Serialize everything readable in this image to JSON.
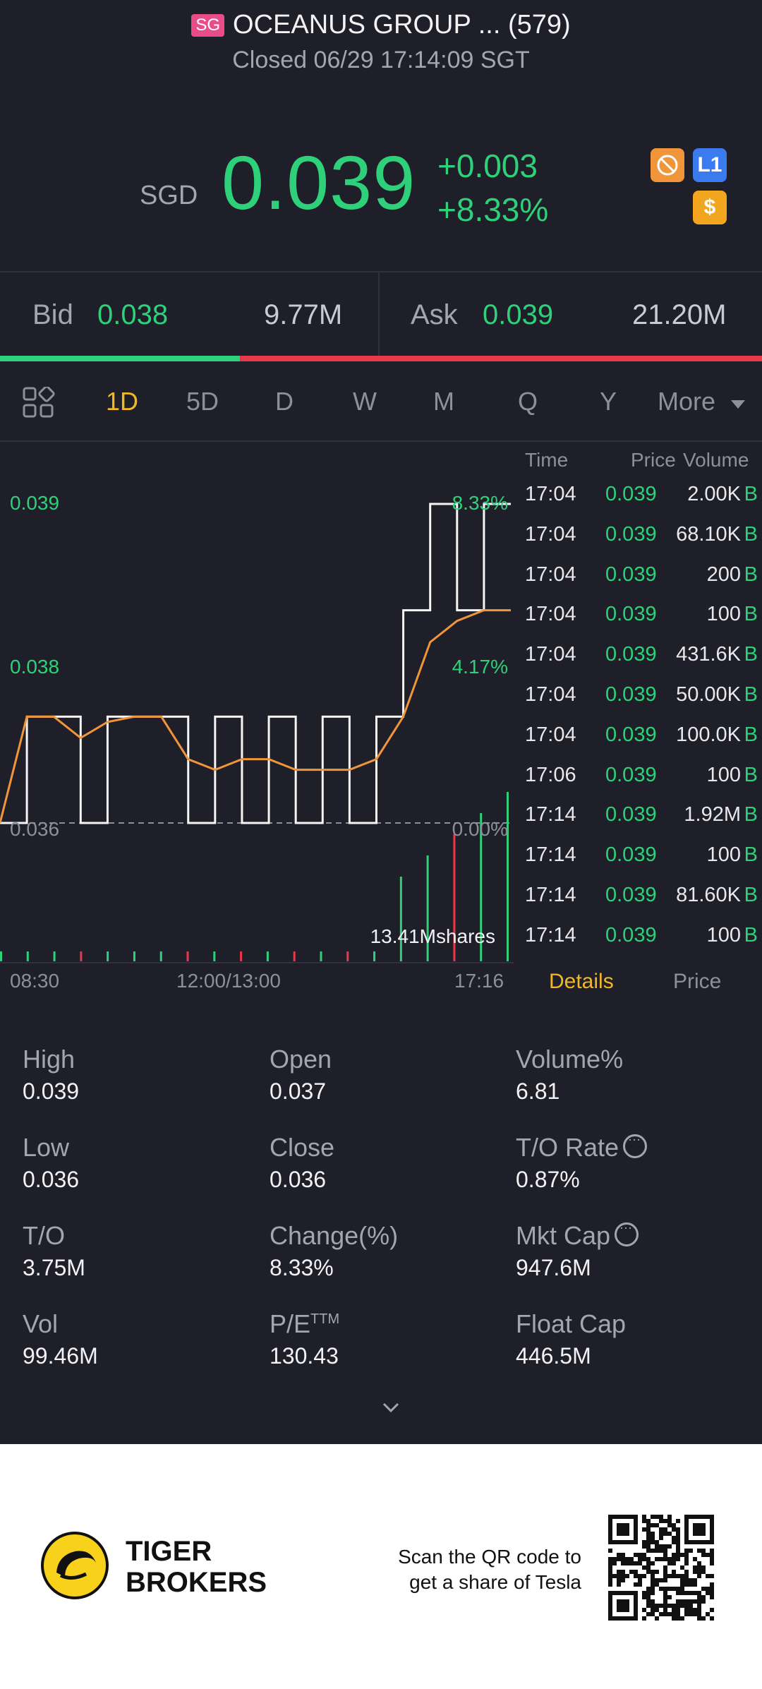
{
  "header": {
    "market_badge": "SG",
    "title": "OCEANUS GROUP ... (579)",
    "status": "Closed 06/29 17:14:09 SGT"
  },
  "quote": {
    "currency": "SGD",
    "last": "0.039",
    "change": "+0.003",
    "change_pct": "+8.33%",
    "icons": [
      "no-short-icon",
      "level1-icon",
      "dollar-icon"
    ],
    "icon_labels": {
      "level1": "L1",
      "dollar": "$"
    }
  },
  "bidask": {
    "bid_label": "Bid",
    "bid": "0.038",
    "bid_vol": "9.77M",
    "ask_label": "Ask",
    "ask": "0.039",
    "ask_vol": "21.20M",
    "bid_ratio": 0.315
  },
  "tabs": {
    "items": [
      "1D",
      "5D",
      "D",
      "W",
      "M",
      "Q",
      "Y",
      "More"
    ],
    "active": "1D"
  },
  "chart_data": {
    "type": "line",
    "y_labels_left": [
      "0.039",
      "0.038",
      "0.036"
    ],
    "y_labels_right": [
      "8.33%",
      "4.17%",
      "0.00%"
    ],
    "x_labels": [
      "08:30",
      "12:00/13:00",
      "17:16"
    ],
    "volume_label": "13.41Mshares",
    "ylim": [
      0.036,
      0.039
    ],
    "series": [
      {
        "values": [
          0.036,
          0.037,
          0.037,
          0.036,
          0.037,
          0.037,
          0.037,
          0.036,
          0.037,
          0.036,
          0.037,
          0.036,
          0.037,
          0.036,
          0.037,
          0.038,
          0.039,
          0.038,
          0.039,
          0.039
        ]
      },
      {
        "values": [
          0.036,
          0.037,
          0.037,
          0.0368,
          0.03695,
          0.037,
          0.037,
          0.0366,
          0.0365,
          0.0366,
          0.0366,
          0.0365,
          0.0365,
          0.0365,
          0.0366,
          0.037,
          0.0377,
          0.0379,
          0.038,
          0.038
        ]
      }
    ]
  },
  "trades": {
    "headers": {
      "time": "Time",
      "price": "Price",
      "volume": "Volume"
    },
    "rows": [
      {
        "time": "17:04",
        "price": "0.039",
        "volume": "2.00K",
        "side": "B"
      },
      {
        "time": "17:04",
        "price": "0.039",
        "volume": "68.10K",
        "side": "B"
      },
      {
        "time": "17:04",
        "price": "0.039",
        "volume": "200",
        "side": "B"
      },
      {
        "time": "17:04",
        "price": "0.039",
        "volume": "100",
        "side": "B"
      },
      {
        "time": "17:04",
        "price": "0.039",
        "volume": "431.6K",
        "side": "B"
      },
      {
        "time": "17:04",
        "price": "0.039",
        "volume": "50.00K",
        "side": "B"
      },
      {
        "time": "17:04",
        "price": "0.039",
        "volume": "100.0K",
        "side": "B"
      },
      {
        "time": "17:06",
        "price": "0.039",
        "volume": "100",
        "side": "B"
      },
      {
        "time": "17:14",
        "price": "0.039",
        "volume": "1.92M",
        "side": "B"
      },
      {
        "time": "17:14",
        "price": "0.039",
        "volume": "100",
        "side": "B"
      },
      {
        "time": "17:14",
        "price": "0.039",
        "volume": "81.60K",
        "side": "B"
      },
      {
        "time": "17:14",
        "price": "0.039",
        "volume": "100",
        "side": "B"
      }
    ],
    "tabs": [
      "Details",
      "Price"
    ]
  },
  "stats": [
    [
      {
        "label": "High",
        "value": "0.039"
      },
      {
        "label": "Open",
        "value": "0.037"
      },
      {
        "label": "Volume%",
        "value": "6.81"
      }
    ],
    [
      {
        "label": "Low",
        "value": "0.036"
      },
      {
        "label": "Close",
        "value": "0.036"
      },
      {
        "label": "T/O Rate",
        "value": "0.87%"
      }
    ],
    [
      {
        "label": "T/O",
        "value": "3.75M"
      },
      {
        "label": "Change(%)",
        "value": "8.33%"
      },
      {
        "label": "Mkt Cap",
        "value": "947.6M"
      }
    ],
    [
      {
        "label": "Vol",
        "value": "99.46M"
      },
      {
        "label": "P/E",
        "value": "130.43"
      },
      {
        "label": "Float Cap",
        "value": "446.5M"
      }
    ]
  ],
  "pe_superscript": "TTM",
  "footer": {
    "brand_line1": "TIGER",
    "brand_line2": "BROKERS",
    "scan_line1": "Scan the QR code to",
    "scan_line2": "get a share of Tesla"
  },
  "colors": {
    "up": "#2ed17a",
    "down": "#e8394a",
    "accent": "#f2b824",
    "bg": "#1f1f29"
  }
}
